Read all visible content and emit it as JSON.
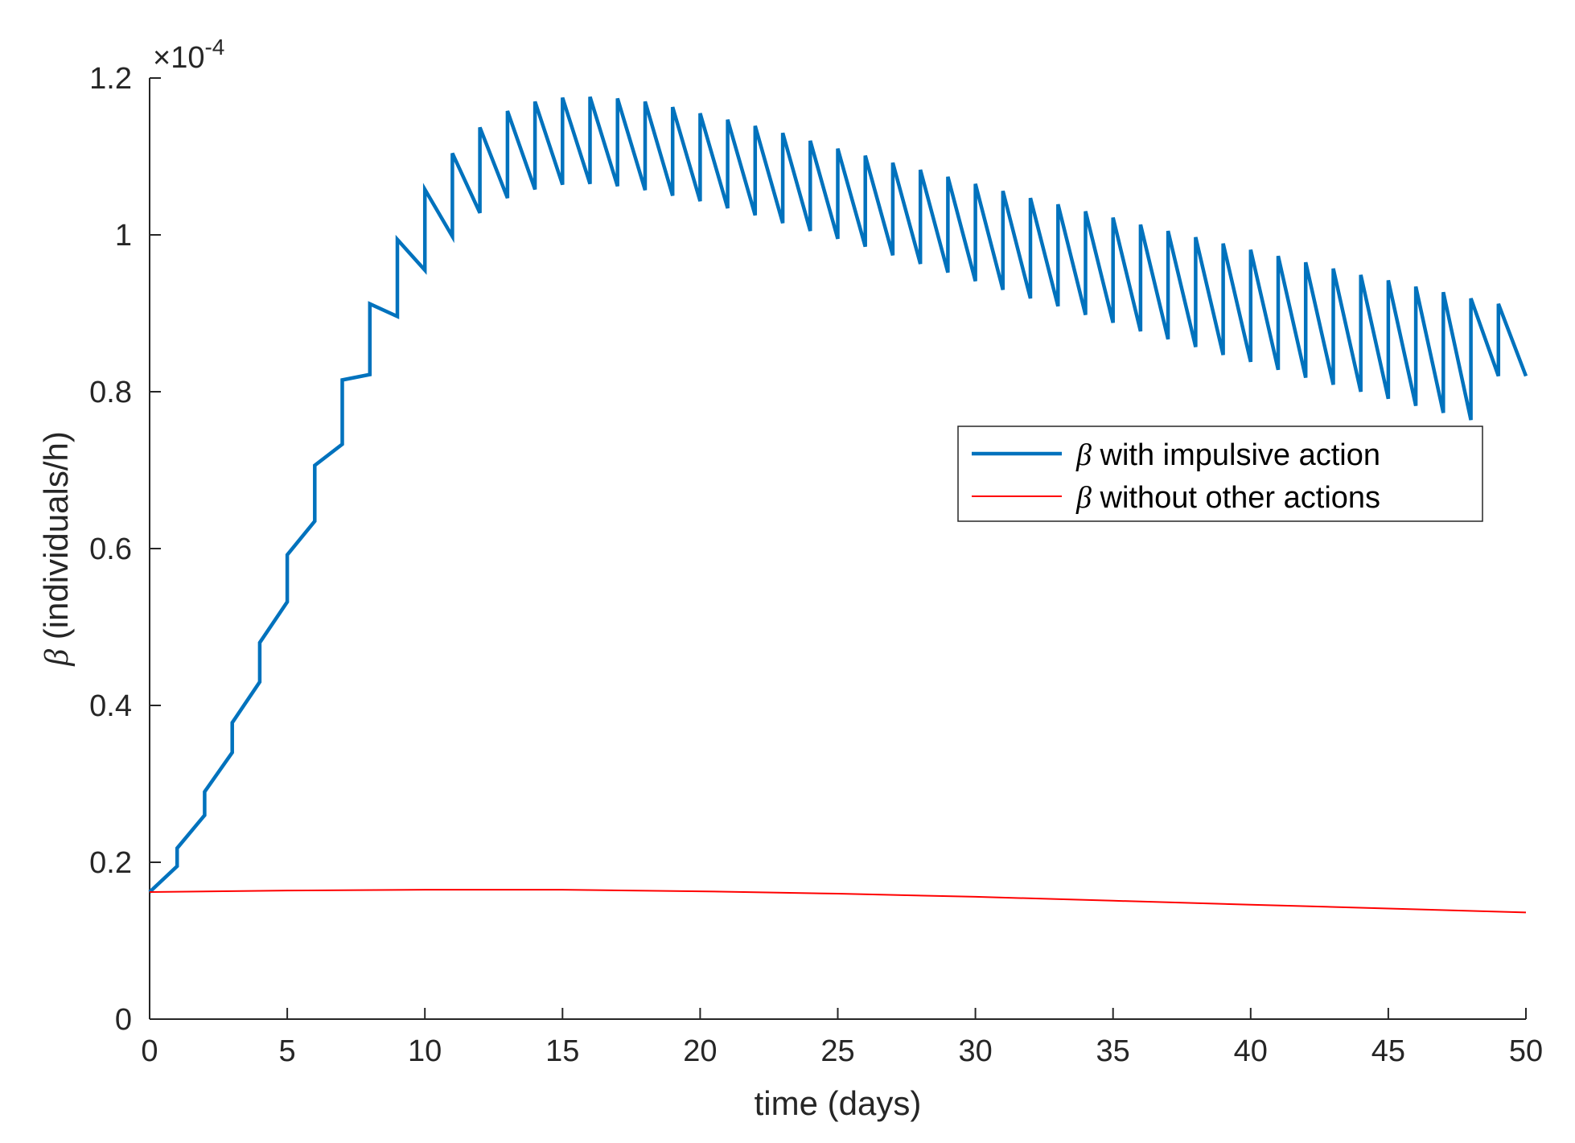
{
  "chart_data": {
    "type": "line",
    "title": "",
    "xlabel": "time (days)",
    "ylabel_symbol": "β",
    "ylabel_text": "(individuals/h)",
    "y_scale_prefix": "×10",
    "y_scale_exponent": "-4",
    "xlim": [
      0,
      50
    ],
    "ylim": [
      0,
      1.2
    ],
    "xticks": [
      0,
      5,
      10,
      15,
      20,
      25,
      30,
      35,
      40,
      45,
      50
    ],
    "xtick_labels": [
      "0",
      "5",
      "10",
      "15",
      "20",
      "25",
      "30",
      "35",
      "40",
      "45",
      "50"
    ],
    "yticks": [
      0,
      0.2,
      0.4,
      0.6,
      0.8,
      1.0,
      1.2
    ],
    "ytick_labels": [
      "0",
      "0.2",
      "0.4",
      "0.6",
      "0.8",
      "1",
      "1.2"
    ],
    "grid": false,
    "legend": {
      "position": "center-right",
      "entries": [
        {
          "symbol": "β",
          "label": "with impulsive action",
          "color": "#0072BD"
        },
        {
          "symbol": "β",
          "label": "without other actions",
          "color": "#FF0000"
        }
      ]
    },
    "series": [
      {
        "name": "β with impulsive action",
        "color": "#0072BD",
        "impulse_times": [
          1,
          2,
          3,
          4,
          5,
          6,
          7,
          8,
          9,
          10,
          11,
          12,
          13,
          14,
          15,
          16,
          17,
          18,
          19,
          20,
          21,
          22,
          23,
          24,
          25,
          26,
          27,
          28,
          29,
          30,
          31,
          32,
          33,
          34,
          35,
          36,
          37,
          38,
          39,
          40,
          41,
          42,
          43,
          44,
          45,
          46,
          47,
          48,
          49
        ],
        "pre_impulse_values": [
          0.162,
          0.195,
          0.26,
          0.34,
          0.43,
          0.532,
          0.635,
          0.733,
          0.822,
          0.896,
          0.955,
          0.998,
          1.028,
          1.047,
          1.058,
          1.064,
          1.065,
          1.062,
          1.057,
          1.05,
          1.043,
          1.034,
          1.025,
          1.015,
          1.005,
          0.995,
          0.985,
          0.974,
          0.963,
          0.952,
          0.941,
          0.93,
          0.919,
          0.909,
          0.898,
          0.888,
          0.877,
          0.867,
          0.857,
          0.847,
          0.838,
          0.828,
          0.818,
          0.809,
          0.8,
          0.791,
          0.782,
          0.773,
          0.764,
          0.82
        ],
        "post_impulse_values": [
          0.218,
          0.29,
          0.378,
          0.48,
          0.592,
          0.706,
          0.815,
          0.912,
          0.994,
          1.058,
          1.104,
          1.137,
          1.158,
          1.17,
          1.175,
          1.176,
          1.174,
          1.17,
          1.163,
          1.155,
          1.147,
          1.139,
          1.13,
          1.12,
          1.11,
          1.101,
          1.092,
          1.083,
          1.074,
          1.065,
          1.056,
          1.047,
          1.039,
          1.03,
          1.022,
          1.013,
          1.005,
          0.997,
          0.989,
          0.981,
          0.973,
          0.965,
          0.957,
          0.949,
          0.942,
          0.934,
          0.927,
          0.919,
          0.912
        ]
      },
      {
        "name": "β without other actions",
        "color": "#FF0000",
        "x": [
          0,
          5,
          10,
          15,
          20,
          25,
          30,
          35,
          40,
          45,
          50
        ],
        "values": [
          0.162,
          0.164,
          0.165,
          0.165,
          0.163,
          0.16,
          0.156,
          0.151,
          0.146,
          0.141,
          0.136
        ]
      }
    ]
  }
}
